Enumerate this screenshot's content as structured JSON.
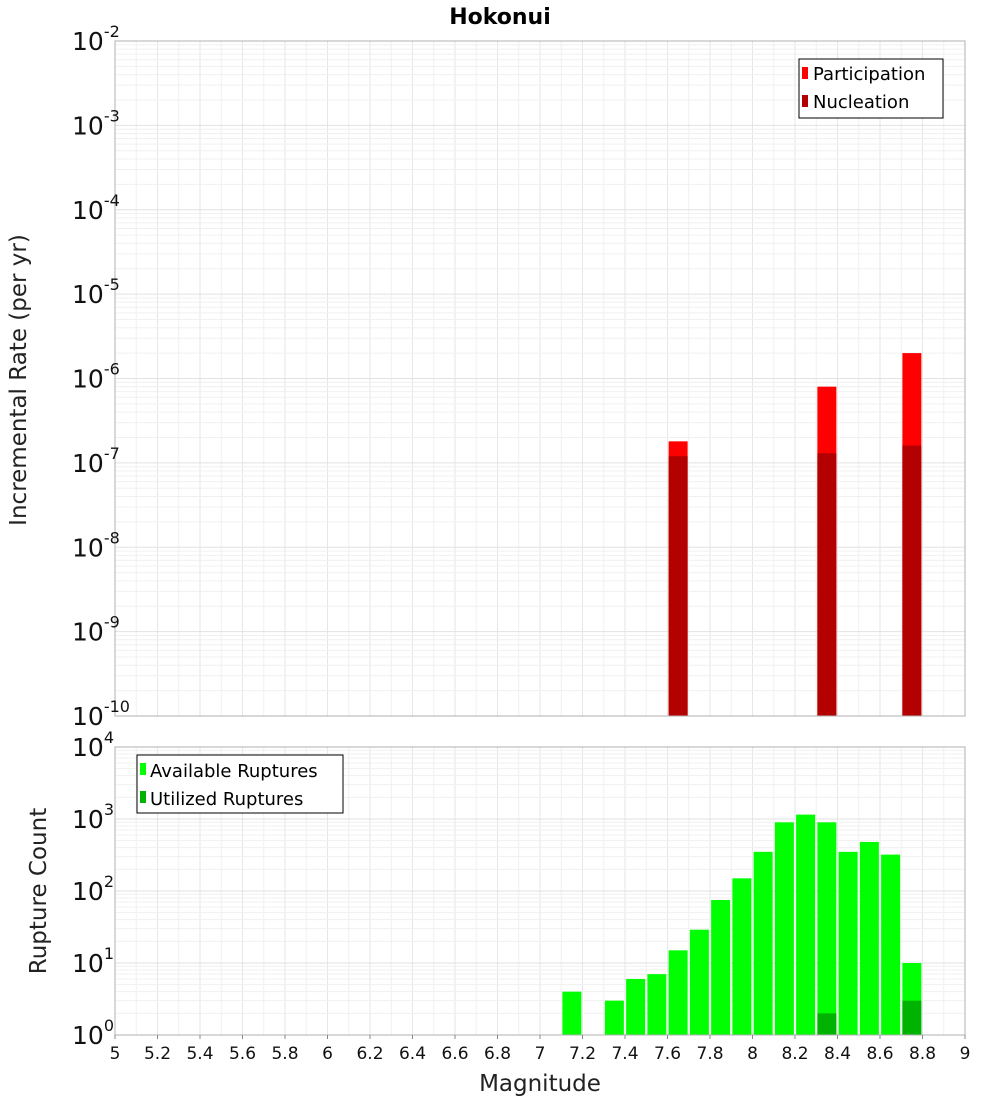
{
  "title": "Hokonui",
  "chart_data": [
    {
      "type": "bar",
      "scale": "log",
      "ylabel": "Incremental Rate (per yr)",
      "ylim": [
        1e-10,
        0.01
      ],
      "xlim": [
        5,
        9
      ],
      "grid": true,
      "legend_position": "top-right",
      "series": [
        {
          "name": "Participation",
          "color": "#ff0000",
          "points": [
            {
              "x": 7.65,
              "y": 1.8e-07
            },
            {
              "x": 8.35,
              "y": 8e-07
            },
            {
              "x": 8.75,
              "y": 2e-06
            }
          ]
        },
        {
          "name": "Nucleation",
          "color": "#b30000",
          "points": [
            {
              "x": 7.65,
              "y": 1.2e-07
            },
            {
              "x": 8.35,
              "y": 1.3e-07
            },
            {
              "x": 8.75,
              "y": 1.6e-07
            }
          ]
        }
      ]
    },
    {
      "type": "bar",
      "scale": "log",
      "ylabel": "Rupture Count",
      "xlabel": "Magnitude",
      "ylim": [
        1,
        10000
      ],
      "xlim": [
        5,
        9
      ],
      "grid": true,
      "legend_position": "top-left",
      "x_ticks": [
        "5",
        "5.2",
        "5.4",
        "5.6",
        "5.8",
        "6",
        "6.2",
        "6.4",
        "6.6",
        "6.8",
        "7",
        "7.2",
        "7.4",
        "7.6",
        "7.8",
        "8",
        "8.2",
        "8.4",
        "8.6",
        "8.8",
        "9"
      ],
      "series": [
        {
          "name": "Available Ruptures",
          "color": "#00ff00",
          "points": [
            {
              "x": 7.15,
              "y": 4
            },
            {
              "x": 7.35,
              "y": 3
            },
            {
              "x": 7.45,
              "y": 6
            },
            {
              "x": 7.55,
              "y": 7
            },
            {
              "x": 7.65,
              "y": 15
            },
            {
              "x": 7.75,
              "y": 29
            },
            {
              "x": 7.85,
              "y": 75
            },
            {
              "x": 7.95,
              "y": 150
            },
            {
              "x": 8.05,
              "y": 350
            },
            {
              "x": 8.15,
              "y": 900
            },
            {
              "x": 8.25,
              "y": 1150
            },
            {
              "x": 8.35,
              "y": 900
            },
            {
              "x": 8.45,
              "y": 350
            },
            {
              "x": 8.55,
              "y": 480
            },
            {
              "x": 8.65,
              "y": 320
            },
            {
              "x": 8.75,
              "y": 10
            }
          ]
        },
        {
          "name": "Utilized Ruptures",
          "color": "#00b300",
          "points": [
            {
              "x": 7.65,
              "y": 1
            },
            {
              "x": 8.35,
              "y": 2
            },
            {
              "x": 8.75,
              "y": 3
            }
          ]
        }
      ]
    }
  ]
}
